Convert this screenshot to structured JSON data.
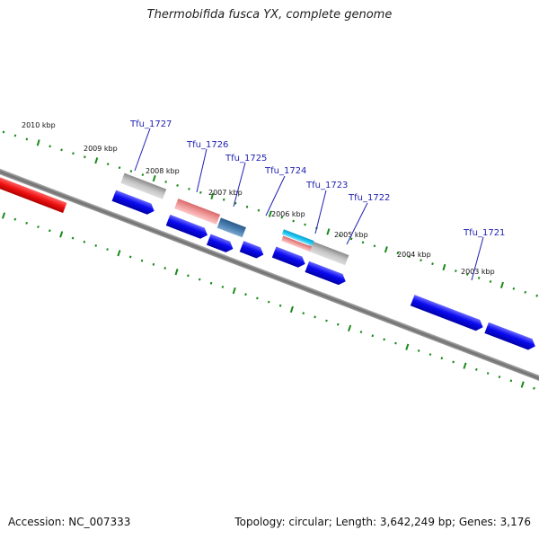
{
  "title": "Thermobifida fusca YX, complete genome",
  "footer": {
    "accession": "Accession: NC_007333",
    "topology": "Topology: circular; Length: 3,642,249 bp; Genes: 3,176"
  },
  "kbp_labels": [
    "2010 kbp",
    "2009 kbp",
    "2008 kbp",
    "2007 kbp",
    "2006 kbp",
    "2005 kbp",
    "2004 kbp",
    "2003 kbp"
  ],
  "gene_labels": [
    "Tfu_1727",
    "Tfu_1726",
    "Tfu_1725",
    "Tfu_1724",
    "Tfu_1723",
    "Tfu_1722",
    "Tfu_1721"
  ],
  "colors": {
    "cds": "#0a0af0",
    "backbone": "#808080",
    "ticks": "#1a8a1a",
    "red_feature": "#ee1111",
    "pink_feature": "#f08a8a",
    "gray_feature": "#bdbdbd",
    "steel_feature": "#4a7fb0",
    "cyan_feature": "#19c4ee",
    "label": "#1f1fb4"
  }
}
